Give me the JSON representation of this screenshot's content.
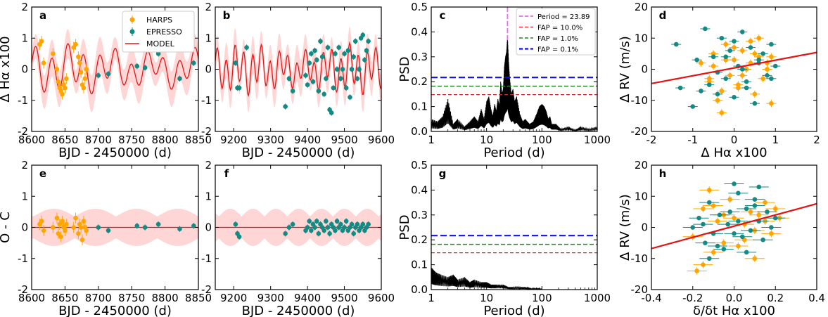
{
  "colors": {
    "harps": "#FFA500",
    "espresso": "#138A83",
    "model": "#E01818",
    "band": "#FFD6D6",
    "axis": "#000000",
    "psd": "#000000",
    "period": "#EE6AEE",
    "fap10": "#E02020",
    "fap1": "#208A20",
    "fap01": "#1010E0",
    "fit": "#E81010"
  },
  "chart_data": [
    {
      "panel": "a",
      "type": "scatter",
      "xlabel": "BJD - 2450000 (d)",
      "ylabel": "Δ Hα x100",
      "xlim": [
        8600,
        8850
      ],
      "ylim": [
        -2,
        2
      ],
      "xticks": [
        8600,
        8650,
        8700,
        8750,
        8800,
        8850
      ],
      "yticks": [
        -2,
        -1,
        0,
        1,
        2
      ],
      "show_model": true,
      "legend": {
        "position": "top-right",
        "entries": [
          "HARPS",
          "EPRESSO",
          "MODEL"
        ]
      },
      "series": [
        {
          "name": "HARPS",
          "x": [
            8612,
            8615,
            8618,
            8632,
            8638,
            8640,
            8642,
            8644,
            8646,
            8648,
            8650,
            8652,
            8663,
            8666,
            8670,
            8672,
            8674,
            8676,
            8678,
            8680,
            8682
          ],
          "y": [
            0.8,
            0.9,
            0.2,
            0.5,
            0.0,
            -0.4,
            -0.6,
            -0.7,
            -0.8,
            -0.5,
            -0.6,
            -0.3,
            0.7,
            0.8,
            0.4,
            0.2,
            -0.1,
            -0.5,
            -0.6,
            -0.3,
            0.0
          ]
        },
        {
          "name": "EPRESSO",
          "x": [
            8700,
            8715,
            8758,
            8770,
            8790,
            8822,
            8843
          ],
          "y": [
            -0.2,
            -0.15,
            0.1,
            0.05,
            0.5,
            -0.3,
            0.2
          ]
        }
      ]
    },
    {
      "panel": "b",
      "type": "scatter",
      "xlabel": "BJD - 2450000 (d)",
      "ylabel": "",
      "xlim": [
        9150,
        9600
      ],
      "ylim": [
        -2,
        2
      ],
      "xticks": [
        9200,
        9300,
        9400,
        9500,
        9600
      ],
      "yticks": [
        -2,
        -1,
        0,
        1,
        2
      ],
      "show_model": true,
      "series": [
        {
          "name": "EPRESSO",
          "x": [
            9205,
            9210,
            9215,
            9235,
            9340,
            9350,
            9360,
            9395,
            9400,
            9405,
            9410,
            9415,
            9420,
            9425,
            9430,
            9435,
            9440,
            9445,
            9450,
            9455,
            9460,
            9465,
            9470,
            9475,
            9480,
            9485,
            9490,
            9495,
            9500,
            9505,
            9510,
            9515,
            9520,
            9525,
            9530,
            9535,
            9540,
            9545,
            9550,
            9555,
            9560,
            9565
          ],
          "y": [
            0.2,
            -0.6,
            -0.6,
            0.7,
            -1.2,
            -0.3,
            -0.7,
            -0.2,
            -0.5,
            0.2,
            0.5,
            -0.4,
            0.6,
            0.3,
            -0.7,
            0.9,
            0.4,
            -0.8,
            -0.3,
            0.7,
            -1.3,
            -1.4,
            -0.6,
            0.5,
            0.0,
            0.7,
            -0.3,
            0.0,
            0.5,
            -0.6,
            0.6,
            -0.9,
            0.0,
            0.4,
            0.9,
            -0.3,
            0.0,
            1.0,
            1.1,
            0.3,
            0.6,
            0.9
          ]
        }
      ]
    },
    {
      "panel": "c",
      "type": "line",
      "xlabel": "Period (d)",
      "ylabel": "PSD",
      "xscale": "log",
      "xlim": [
        1,
        1000
      ],
      "ylim": [
        0,
        0.5
      ],
      "xticks": [
        1,
        10,
        100,
        1000
      ],
      "yticks": [
        0.0,
        0.1,
        0.2,
        0.3,
        0.4,
        0.5
      ],
      "legend": {
        "position": "top-right",
        "entries": [
          "Period = 23.89",
          "FAP = 10.0%",
          "FAP =  1.0%",
          "FAP =  0.1%"
        ]
      },
      "period": 23.89,
      "fap": {
        "fap10": 0.148,
        "fap1": 0.182,
        "fap01": 0.217
      },
      "series": [
        {
          "name": "PSD",
          "period": [
            1,
            1.3,
            1.6,
            2,
            2.5,
            3,
            4,
            5,
            6,
            7,
            8,
            9,
            10,
            11,
            12,
            13,
            14,
            15,
            16,
            17,
            18,
            19,
            20,
            21,
            22,
            23,
            23.89,
            25,
            26,
            28,
            30,
            32,
            35,
            40,
            45,
            50,
            60,
            70,
            80,
            90,
            100,
            110,
            120,
            130,
            140,
            150,
            180,
            220,
            300,
            400,
            500,
            700,
            1000
          ],
          "psd": [
            0.05,
            0.04,
            0.06,
            0.13,
            0.03,
            0.05,
            0.02,
            0.04,
            0.06,
            0.04,
            0.09,
            0.05,
            0.12,
            0.14,
            0.09,
            0.06,
            0.11,
            0.08,
            0.13,
            0.1,
            0.2,
            0.15,
            0.17,
            0.26,
            0.3,
            0.32,
            0.38,
            0.28,
            0.22,
            0.15,
            0.17,
            0.12,
            0.14,
            0.07,
            0.04,
            0.05,
            0.03,
            0.04,
            0.07,
            0.1,
            0.11,
            0.1,
            0.08,
            0.05,
            0.06,
            0.03,
            0.03,
            0.01,
            0.02,
            0.005,
            0.02,
            0.01,
            0.02
          ]
        }
      ]
    },
    {
      "panel": "d",
      "type": "scatter",
      "xlabel": "Δ Hα x100",
      "ylabel": "Δ RV (m/s)",
      "xlim": [
        -2,
        2
      ],
      "ylim": [
        -20,
        20
      ],
      "xticks": [
        -2,
        -1,
        0,
        1,
        2
      ],
      "yticks": [
        -20,
        -10,
        0,
        10,
        20
      ],
      "fit_line": {
        "x": [
          -2,
          2
        ],
        "y": [
          -4.6,
          5.4
        ]
      },
      "series": [
        {
          "name": "HARPS",
          "x": [
            -0.8,
            -0.6,
            -0.5,
            -0.4,
            -0.3,
            -0.2,
            -0.1,
            0.0,
            0.1,
            0.2,
            0.3,
            0.4,
            0.5,
            0.6,
            0.7,
            0.8,
            0.9,
            -0.5,
            -0.3,
            0.0,
            0.2,
            0.5,
            0.8,
            -0.6,
            -0.2,
            0.1,
            0.4,
            0.6,
            0.9
          ],
          "y": [
            2,
            -3,
            5,
            -10,
            -14,
            8,
            -2,
            3,
            -5,
            6,
            0,
            9,
            -8,
            4,
            -3,
            2,
            -11,
            1,
            -7,
            7,
            -2,
            5,
            0,
            -4,
            3,
            -6,
            2,
            10,
            4
          ]
        },
        {
          "name": "EPRESSO",
          "x": [
            -1.4,
            -1.3,
            -1.0,
            -0.9,
            -0.7,
            -0.6,
            -0.5,
            -0.4,
            -0.3,
            -0.2,
            -0.1,
            0.0,
            0.1,
            0.2,
            0.3,
            0.4,
            0.5,
            0.6,
            0.7,
            0.8,
            0.9,
            1.0,
            -0.8,
            -0.4,
            0.0,
            0.3,
            0.6,
            0.9,
            -0.2,
            0.2
          ],
          "y": [
            8,
            -6,
            -12,
            3,
            13,
            -5,
            4,
            -8,
            10,
            -3,
            6,
            -9,
            1,
            12,
            -4,
            7,
            -11,
            3,
            5,
            -2,
            8,
            1,
            -7,
            -1,
            9,
            -6,
            2,
            -3,
            4,
            0
          ]
        }
      ]
    },
    {
      "panel": "e",
      "type": "scatter",
      "xlabel": "BJD - 2450000 (d)",
      "ylabel": "O - C",
      "xlim": [
        8600,
        8850
      ],
      "ylim": [
        -2,
        2
      ],
      "xticks": [
        8600,
        8650,
        8700,
        8750,
        8800,
        8850
      ],
      "yticks": [
        -2,
        -1,
        0,
        1,
        2
      ],
      "residual_line": 0,
      "series": [
        {
          "name": "HARPS",
          "x": [
            8612,
            8615,
            8618,
            8632,
            8638,
            8640,
            8642,
            8644,
            8646,
            8648,
            8650,
            8652,
            8663,
            8666,
            8670,
            8672,
            8674,
            8676,
            8678,
            8680,
            8682
          ],
          "y": [
            0.1,
            0.2,
            -0.1,
            0.0,
            0.3,
            -0.2,
            0.1,
            -0.3,
            0.2,
            0.0,
            -0.1,
            0.1,
            0.0,
            0.3,
            -0.2,
            0.1,
            0.0,
            -0.4,
            0.2,
            0.0,
            -0.1
          ]
        },
        {
          "name": "EPRESSO",
          "x": [
            8700,
            8715,
            8758,
            8770,
            8790,
            8822,
            8843
          ],
          "y": [
            0.0,
            -0.1,
            0.05,
            0.0,
            0.1,
            -0.05,
            0.05
          ]
        }
      ]
    },
    {
      "panel": "f",
      "type": "scatter",
      "xlabel": "BJD - 2450000 (d)",
      "ylabel": "",
      "xlim": [
        9150,
        9600
      ],
      "ylim": [
        -2,
        2
      ],
      "xticks": [
        9200,
        9300,
        9400,
        9500,
        9600
      ],
      "yticks": [
        -2,
        -1,
        0,
        1,
        2
      ],
      "residual_line": 0,
      "series": [
        {
          "name": "EPRESSO",
          "x": [
            9205,
            9210,
            9215,
            9340,
            9350,
            9360,
            9395,
            9400,
            9405,
            9410,
            9415,
            9420,
            9425,
            9430,
            9435,
            9440,
            9445,
            9450,
            9455,
            9460,
            9465,
            9470,
            9475,
            9480,
            9485,
            9490,
            9495,
            9500,
            9505,
            9510,
            9515,
            9520,
            9525,
            9530,
            9535,
            9540,
            9545,
            9550,
            9555,
            9560,
            9565
          ],
          "y": [
            0.1,
            -0.2,
            -0.3,
            -0.2,
            0.0,
            0.1,
            -0.1,
            0.0,
            0.2,
            -0.1,
            0.1,
            0.0,
            0.2,
            -0.2,
            0.1,
            0.0,
            -0.1,
            0.2,
            0.0,
            -0.2,
            0.1,
            0.0,
            -0.1,
            0.2,
            0.0,
            0.1,
            -0.1,
            0.0,
            0.2,
            -0.1,
            0.0,
            0.1,
            -0.2,
            0.0,
            0.1,
            -0.1,
            0.0,
            0.1,
            -0.1,
            0.0,
            0.1
          ]
        }
      ]
    },
    {
      "panel": "g",
      "type": "line",
      "xlabel": "Period (d)",
      "ylabel": "PSD",
      "xscale": "log",
      "xlim": [
        1,
        1000
      ],
      "ylim": [
        0,
        0.5
      ],
      "xticks": [
        1,
        10,
        100,
        1000
      ],
      "yticks": [
        0.0,
        0.1,
        0.2,
        0.3,
        0.4,
        0.5
      ],
      "fap": {
        "fap10": 0.148,
        "fap1": 0.182,
        "fap01": 0.217
      },
      "series": [
        {
          "name": "PSD",
          "period": [
            1,
            1.2,
            1.5,
            2,
            2.5,
            3,
            4,
            5,
            6,
            8,
            10,
            12,
            15,
            20,
            25,
            30,
            40,
            50,
            60,
            80,
            100
          ],
          "psd": [
            0.09,
            0.07,
            0.06,
            0.05,
            0.06,
            0.04,
            0.05,
            0.03,
            0.04,
            0.03,
            0.03,
            0.02,
            0.02,
            0.02,
            0.01,
            0.01,
            0.01,
            0.01,
            0.005,
            0.005,
            0.003
          ]
        }
      ]
    },
    {
      "panel": "h",
      "type": "scatter",
      "xlabel": "δ/δt Hα x100",
      "ylabel": "Δ RV (m/s)",
      "xlim": [
        -0.4,
        0.4
      ],
      "ylim": [
        -20,
        20
      ],
      "xticks": [
        -0.4,
        -0.2,
        0.0,
        0.2,
        0.4
      ],
      "yticks": [
        -20,
        -10,
        0,
        10,
        20
      ],
      "fit_line": {
        "x": [
          -0.4,
          0.4
        ],
        "y": [
          -6.8,
          7.6
        ]
      },
      "series": [
        {
          "name": "HARPS",
          "x": [
            -0.2,
            -0.18,
            -0.15,
            -0.12,
            -0.1,
            -0.08,
            -0.05,
            -0.02,
            0.0,
            0.02,
            0.05,
            0.08,
            0.1,
            0.12,
            0.15,
            0.18,
            0.2,
            0.22,
            -0.15,
            -0.05,
            0.05,
            0.15,
            -0.1,
            0.1
          ],
          "y": [
            -3,
            -14,
            6,
            12,
            -8,
            2,
            -5,
            9,
            3,
            -6,
            1,
            5,
            -10,
            4,
            8,
            -2,
            6,
            3,
            -12,
            4,
            -4,
            2,
            7,
            -1
          ]
        },
        {
          "name": "EPRESSO",
          "x": [
            -0.2,
            -0.17,
            -0.14,
            -0.12,
            -0.1,
            -0.07,
            -0.05,
            -0.03,
            0.0,
            0.02,
            0.04,
            0.06,
            0.08,
            0.1,
            0.12,
            0.14,
            0.16,
            0.18,
            0.2,
            -0.12,
            -0.02,
            0.06,
            0.12,
            0.02,
            -0.08,
            0.1,
            0.0,
            -0.15
          ],
          "y": [
            0,
            3,
            -5,
            8,
            -2,
            4,
            -7,
            1,
            14,
            11,
            -3,
            6,
            -1,
            9,
            2,
            -4,
            5,
            0,
            3,
            -10,
            5,
            -8,
            13,
            2,
            -6,
            7,
            -2,
            1
          ]
        }
      ]
    }
  ]
}
